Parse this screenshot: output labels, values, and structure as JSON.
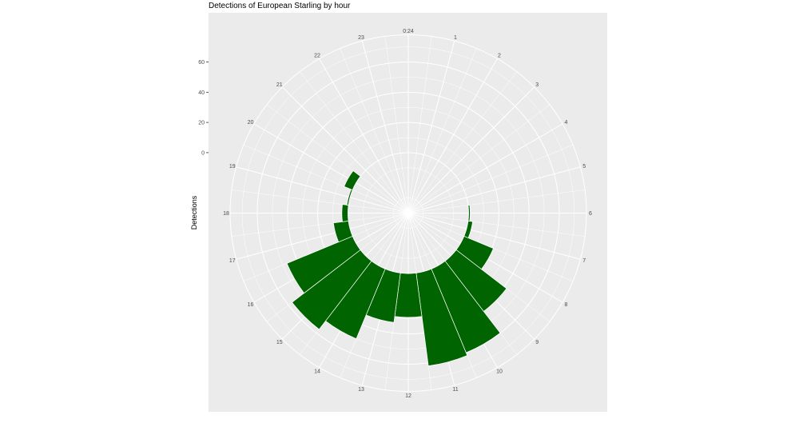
{
  "chart_data": {
    "type": "bar",
    "coord": "polar",
    "title": "Detections of European Starling by hour",
    "xlabel": "",
    "ylabel": "Detections",
    "categories": [
      "0",
      "1",
      "2",
      "3",
      "4",
      "5",
      "6",
      "7",
      "8",
      "9",
      "10",
      "11",
      "12",
      "13",
      "14",
      "15",
      "16",
      "17",
      "18",
      "19",
      "20",
      "21",
      "22",
      "23"
    ],
    "values": [
      0,
      0,
      0,
      0,
      0,
      0,
      1,
      3,
      21,
      42,
      60,
      62,
      29,
      33,
      50,
      57,
      47,
      10,
      4,
      1,
      6,
      0,
      0,
      0
    ],
    "ylim": [
      -40,
      78
    ],
    "y_ticks": [
      "0",
      "20",
      "40",
      "60"
    ],
    "angle_labels": [
      "0:24",
      "1",
      "2",
      "3",
      "4",
      "5",
      "6",
      "7",
      "8",
      "9",
      "10",
      "11",
      "12",
      "13",
      "14",
      "15",
      "16",
      "17",
      "18",
      "19",
      "20",
      "21",
      "22",
      "23"
    ],
    "grid": true,
    "colors": {
      "bar": "#006400",
      "panel": "#ebebeb",
      "grid": "#ffffff"
    }
  }
}
